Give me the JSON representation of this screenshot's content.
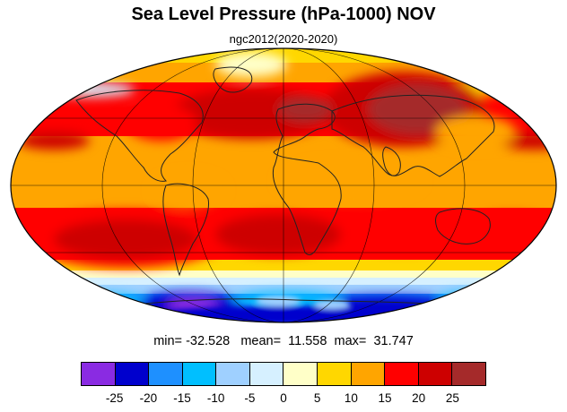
{
  "title": "Sea Level Pressure (hPa-1000) NOV",
  "subtitle": "ngc2012(2020-2020)",
  "stats": {
    "min_label": "min=",
    "min": "-32.528",
    "mean_label": "mean=",
    "mean": "11.558",
    "max_label": "max=",
    "max": "31.747"
  },
  "colorbar": {
    "colors": [
      "#8a2be2",
      "#0000cd",
      "#1e90ff",
      "#00bfff",
      "#9fd0ff",
      "#d6f0ff",
      "#ffffc8",
      "#ffd700",
      "#ffa500",
      "#ff0000",
      "#cd0000",
      "#a52a2a"
    ],
    "tick_labels": [
      "-25",
      "-20",
      "-15",
      "-10",
      "-5",
      "0",
      "5",
      "10",
      "15",
      "20",
      "25"
    ]
  },
  "map": {
    "projection": "mollweide",
    "coastlines": true,
    "graticule": true
  }
}
